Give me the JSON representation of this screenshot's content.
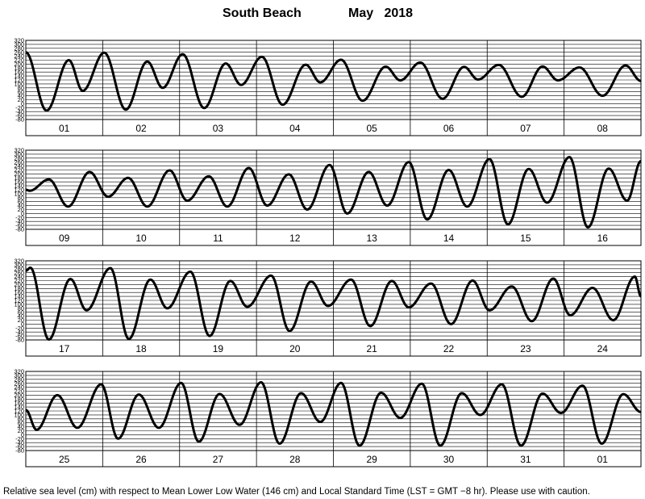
{
  "header": {
    "location": "South Beach",
    "month_year": "May   2018"
  },
  "footer": {
    "note": "Relative sea level (cm) with respect to Mean Lower Low Water (146 cm) and Local Standard Time (LST = GMT −8 hr). Please use with caution."
  },
  "chart_data": {
    "type": "line",
    "title": "South Beach   May   2018",
    "ylabel": "",
    "ylim": [
      -80,
      320
    ],
    "yticks": [
      -80,
      -60,
      -40,
      -20,
      0,
      20,
      40,
      60,
      80,
      100,
      120,
      140,
      160,
      180,
      200,
      220,
      240,
      260,
      280,
      300,
      320
    ],
    "grid": true,
    "panels": [
      {
        "days": [
          "01",
          "02",
          "03",
          "04",
          "05",
          "06",
          "07",
          "08"
        ],
        "series": [
          {
            "tides": [
              [
                0.0,
                260
              ],
              [
                0.27,
                -35
              ],
              [
                0.56,
                220
              ],
              [
                0.74,
                65
              ],
              [
                1.02,
                258
              ],
              [
                1.3,
                -30
              ],
              [
                1.58,
                213
              ],
              [
                1.78,
                80
              ],
              [
                2.04,
                250
              ],
              [
                2.32,
                -22
              ],
              [
                2.6,
                203
              ],
              [
                2.8,
                95
              ],
              [
                3.07,
                237
              ],
              [
                3.34,
                -5
              ],
              [
                3.64,
                197
              ],
              [
                3.83,
                108
              ],
              [
                4.1,
                222
              ],
              [
                4.38,
                15
              ],
              [
                4.68,
                187
              ],
              [
                4.87,
                118
              ],
              [
                5.13,
                208
              ],
              [
                5.42,
                25
              ],
              [
                5.7,
                186
              ],
              [
                5.88,
                122
              ],
              [
                6.15,
                196
              ],
              [
                6.45,
                35
              ],
              [
                6.72,
                188
              ],
              [
                6.92,
                118
              ],
              [
                7.2,
                183
              ],
              [
                7.5,
                40
              ],
              [
                7.8,
                193
              ],
              [
                8.0,
                115
              ]
            ]
          }
        ]
      },
      {
        "days": [
          "09",
          "10",
          "11",
          "12",
          "13",
          "14",
          "15",
          "16"
        ],
        "series": [
          {
            "tides": [
              [
                0.0,
                120
              ],
              [
                0.05,
                115
              ],
              [
                0.3,
                172
              ],
              [
                0.55,
                35
              ],
              [
                0.83,
                210
              ],
              [
                1.07,
                85
              ],
              [
                1.33,
                180
              ],
              [
                1.58,
                35
              ],
              [
                1.87,
                218
              ],
              [
                2.1,
                65
              ],
              [
                2.38,
                188
              ],
              [
                2.62,
                35
              ],
              [
                2.9,
                230
              ],
              [
                3.14,
                40
              ],
              [
                3.42,
                198
              ],
              [
                3.66,
                20
              ],
              [
                3.95,
                245
              ],
              [
                4.18,
                0
              ],
              [
                4.46,
                210
              ],
              [
                4.7,
                40
              ],
              [
                4.98,
                260
              ],
              [
                5.22,
                -30
              ],
              [
                5.5,
                220
              ],
              [
                5.74,
                35
              ],
              [
                6.03,
                275
              ],
              [
                6.27,
                -55
              ],
              [
                6.54,
                225
              ],
              [
                6.78,
                55
              ],
              [
                7.07,
                285
              ],
              [
                7.31,
                -70
              ],
              [
                7.58,
                227
              ],
              [
                7.82,
                65
              ],
              [
                8.0,
                265
              ]
            ]
          }
        ]
      },
      {
        "days": [
          "17",
          "18",
          "19",
          "20",
          "21",
          "22",
          "23",
          "24"
        ],
        "series": [
          {
            "tides": [
              [
                0.0,
                270
              ],
              [
                0.06,
                285
              ],
              [
                0.3,
                -78
              ],
              [
                0.58,
                228
              ],
              [
                0.79,
                70
              ],
              [
                1.1,
                283
              ],
              [
                1.34,
                -75
              ],
              [
                1.62,
                225
              ],
              [
                1.84,
                80
              ],
              [
                2.14,
                265
              ],
              [
                2.39,
                -60
              ],
              [
                2.66,
                218
              ],
              [
                2.88,
                88
              ],
              [
                3.19,
                245
              ],
              [
                3.43,
                -35
              ],
              [
                3.71,
                215
              ],
              [
                3.93,
                92
              ],
              [
                4.23,
                225
              ],
              [
                4.48,
                -10
              ],
              [
                4.76,
                218
              ],
              [
                4.98,
                85
              ],
              [
                5.27,
                205
              ],
              [
                5.53,
                0
              ],
              [
                5.81,
                220
              ],
              [
                6.03,
                70
              ],
              [
                6.32,
                190
              ],
              [
                6.58,
                15
              ],
              [
                6.86,
                230
              ],
              [
                7.08,
                45
              ],
              [
                7.37,
                183
              ],
              [
                7.64,
                20
              ],
              [
                7.92,
                240
              ],
              [
                8.0,
                140
              ]
            ]
          }
        ]
      },
      {
        "days": [
          "25",
          "26",
          "27",
          "28",
          "29",
          "30",
          "31",
          "01"
        ],
        "series": [
          {
            "tides": [
              [
                0.0,
                125
              ],
              [
                0.14,
                25
              ],
              [
                0.41,
                200
              ],
              [
                0.67,
                35
              ],
              [
                0.98,
                255
              ],
              [
                1.2,
                -20
              ],
              [
                1.47,
                203
              ],
              [
                1.73,
                35
              ],
              [
                2.02,
                262
              ],
              [
                2.25,
                -35
              ],
              [
                2.52,
                206
              ],
              [
                2.78,
                50
              ],
              [
                3.06,
                265
              ],
              [
                3.3,
                -45
              ],
              [
                3.58,
                210
              ],
              [
                3.83,
                65
              ],
              [
                4.1,
                262
              ],
              [
                4.34,
                -55
              ],
              [
                4.62,
                212
              ],
              [
                4.87,
                85
              ],
              [
                5.15,
                258
              ],
              [
                5.39,
                -55
              ],
              [
                5.67,
                210
              ],
              [
                5.91,
                100
              ],
              [
                6.19,
                255
              ],
              [
                6.44,
                -55
              ],
              [
                6.72,
                208
              ],
              [
                6.96,
                110
              ],
              [
                7.24,
                248
              ],
              [
                7.49,
                -45
              ],
              [
                7.77,
                205
              ],
              [
                8.0,
                115
              ]
            ]
          }
        ]
      }
    ]
  }
}
